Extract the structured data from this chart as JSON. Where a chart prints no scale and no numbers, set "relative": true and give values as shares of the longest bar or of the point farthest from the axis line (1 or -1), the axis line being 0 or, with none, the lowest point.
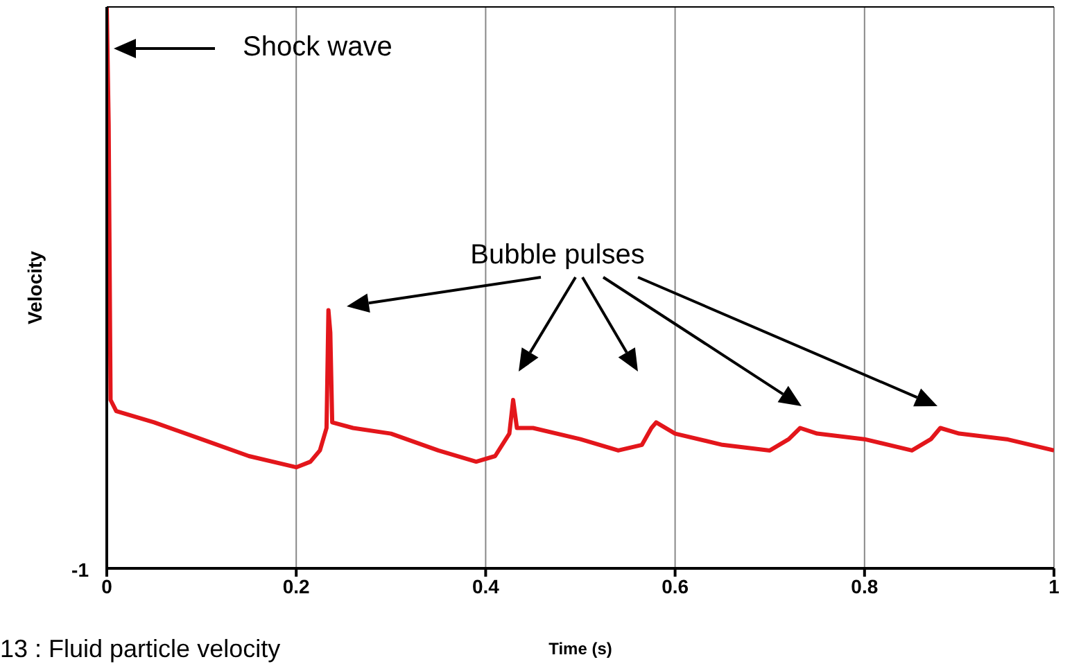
{
  "chart_data": {
    "type": "line",
    "relative": true,
    "xlabel": "Time (s)",
    "ylabel": "Velocity",
    "x": [
      0,
      0.002,
      0.004,
      0.01,
      0.05,
      0.1,
      0.15,
      0.2,
      0.215,
      0.225,
      0.232,
      0.234,
      0.236,
      0.238,
      0.26,
      0.3,
      0.35,
      0.39,
      0.41,
      0.425,
      0.429,
      0.433,
      0.45,
      0.5,
      0.54,
      0.565,
      0.575,
      0.58,
      0.6,
      0.65,
      0.7,
      0.72,
      0.732,
      0.75,
      0.8,
      0.85,
      0.87,
      0.88,
      0.9,
      0.95,
      1.0
    ],
    "series": [
      {
        "color": "#e3161b",
        "values": [
          1.0,
          0.79,
          0.3,
          0.28,
          0.26,
          0.23,
          0.2,
          0.18,
          0.19,
          0.21,
          0.25,
          0.46,
          0.42,
          0.26,
          0.25,
          0.24,
          0.21,
          0.19,
          0.2,
          0.24,
          0.3,
          0.25,
          0.25,
          0.23,
          0.21,
          0.22,
          0.25,
          0.26,
          0.24,
          0.22,
          0.21,
          0.23,
          0.25,
          0.24,
          0.23,
          0.21,
          0.23,
          0.25,
          0.24,
          0.23,
          0.21
        ]
      }
    ],
    "xlim": [
      0,
      1
    ],
    "xticks": [
      0,
      0.2,
      0.4,
      0.6,
      0.8,
      1
    ],
    "grid": "x",
    "legend": false,
    "marker": "none",
    "line_style": "solid",
    "annotations": [
      "Shock wave",
      "Bubble pulses",
      "-1",
      "13 : Fluid particle velocity"
    ]
  }
}
